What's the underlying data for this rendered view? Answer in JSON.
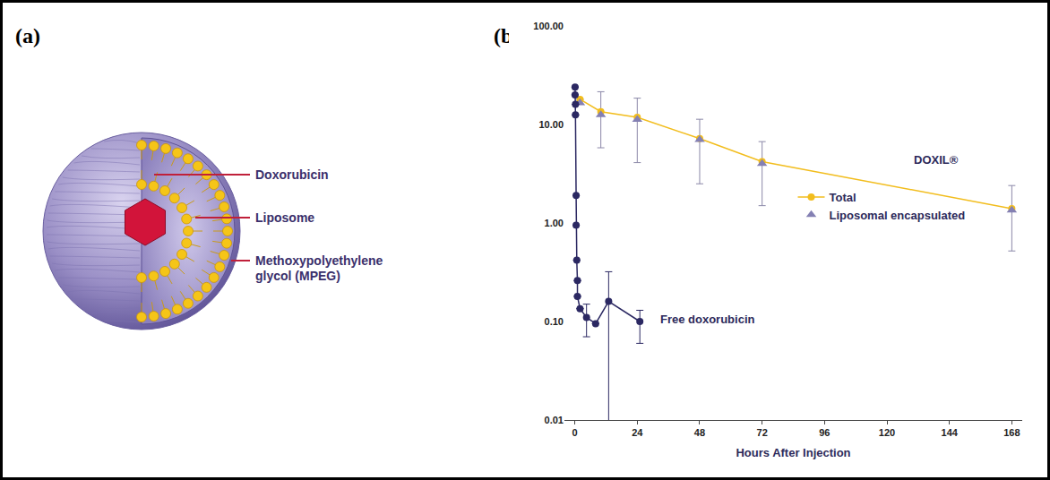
{
  "panel_labels": [
    "(a)",
    "(b)"
  ],
  "diagram": {
    "labels": [
      "Doxorubicin",
      "Liposome",
      "Methoxypolyethylene glycol (MPEG)"
    ]
  },
  "chart_data": {
    "type": "line",
    "x_label": "Hours After Injection",
    "annotations": [
      "DOXIL®",
      "Free doxorubicin"
    ],
    "xlim": [
      -4,
      172
    ],
    "xticks": [
      0,
      24,
      48,
      72,
      96,
      120,
      144,
      168
    ],
    "ylim": [
      0.01,
      100
    ],
    "yticks": [
      0.01,
      {
        "value": 0.1,
        "label": "0.10"
      },
      {
        "value": 1,
        "label": "1.00"
      },
      {
        "value": 10,
        "label": "10.00"
      },
      {
        "value": 100,
        "label": "100.00"
      }
    ],
    "log": "y",
    "grid": false,
    "legend": "right",
    "series": [
      {
        "name": "Total",
        "color": "#f2bd1d",
        "marker": "circle",
        "line_style": "solid",
        "x": [
          2,
          10,
          24,
          48,
          72,
          168
        ],
        "values": [
          18,
          13.5,
          11.8,
          7.2,
          4.2,
          1.4
        ],
        "error_plus": [
          0,
          8,
          6.7,
          4.1,
          2.5,
          1.0
        ],
        "error_minus": [
          0,
          7.7,
          7.7,
          4.7,
          2.7,
          0.88
        ]
      },
      {
        "name": "Liposomal encapsulated",
        "color": "#8480b3",
        "marker": "triangle-up",
        "line_style": "none",
        "x": [
          2,
          10,
          24,
          48,
          72,
          168
        ],
        "values": [
          16.5,
          12.5,
          11.2,
          7,
          4,
          1.35
        ]
      },
      {
        "name": "Free doxorubicin",
        "color": "#2b2862",
        "marker": "circle",
        "line_style": "solid",
        "x": [
          0.1,
          0.1,
          0.25,
          0.25,
          0.5,
          0.5,
          0.75,
          1,
          1,
          2,
          4.5,
          8,
          13,
          25
        ],
        "values": [
          24,
          20,
          16,
          12.5,
          1.9,
          0.95,
          0.42,
          0.26,
          0.18,
          0.135,
          0.11,
          0.095,
          0.16,
          0.1
        ],
        "error_plus": [
          0,
          0,
          0,
          0,
          0,
          0,
          0,
          0,
          0,
          0,
          0.04,
          0,
          0.16,
          0.03
        ],
        "error_minus": [
          0,
          0,
          0,
          0,
          0,
          0,
          0,
          0,
          0,
          0,
          0.04,
          0,
          0.155,
          0.04
        ]
      }
    ]
  }
}
